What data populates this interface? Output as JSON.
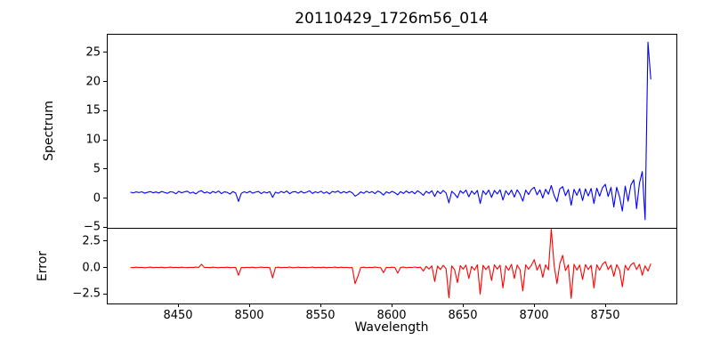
{
  "chart_data": {
    "type": "line",
    "title": "20110429_1726m56_014",
    "xlabel": "Wavelength",
    "x_start": 8416,
    "x_step": 2,
    "xlim": [
      8400,
      8800
    ],
    "xticks": {
      "values": [
        8450,
        8500,
        8550,
        8600,
        8650,
        8700,
        8750
      ],
      "labels": [
        "8450",
        "8500",
        "8550",
        "8600",
        "8650",
        "8700",
        "8750"
      ]
    },
    "grid": false,
    "legend": "none",
    "subplots": [
      {
        "name": "spectrum",
        "ylabel": "Spectrum",
        "color": "#0000ff",
        "ylim": [
          -5.1,
          28.2
        ],
        "ytick_values": [
          -5,
          0,
          5,
          10,
          15,
          20,
          25
        ],
        "ytick_labels": [
          "−5",
          "0",
          "5",
          "10",
          "15",
          "20",
          "25"
        ],
        "y": [
          1.05,
          0.92,
          1.1,
          0.98,
          1.12,
          0.88,
          1.02,
          1.15,
          0.95,
          1.08,
          0.9,
          1.18,
          1.0,
          0.85,
          1.12,
          1.05,
          0.78,
          1.2,
          0.95,
          1.1,
          1.22,
          0.88,
          1.05,
          0.75,
          1.15,
          1.3,
          0.92,
          1.08,
          0.82,
          1.18,
          0.95,
          1.25,
          0.8,
          1.1,
          1.02,
          0.72,
          1.15,
          0.9,
          -0.55,
          0.85,
          1.12,
          0.95,
          1.2,
          0.88,
          1.05,
          1.18,
          0.8,
          1.1,
          0.92,
          1.15,
          0.15,
          1.05,
          0.85,
          1.18,
          0.95,
          1.25,
          0.78,
          1.08,
          1.15,
          0.88,
          1.2,
          0.9,
          1.05,
          1.28,
          0.82,
          1.12,
          0.95,
          1.22,
          0.85,
          1.1,
          0.75,
          1.18,
          1.02,
          1.25,
          0.88,
          1.15,
          0.92,
          1.2,
          0.95,
          0.35,
          0.65,
          1.1,
          0.85,
          1.22,
          0.95,
          1.15,
          0.8,
          1.25,
          1.0,
          0.55,
          1.12,
          0.88,
          1.2,
          0.95,
          0.6,
          1.15,
          0.82,
          1.25,
          0.9,
          1.18,
          0.78,
          1.28,
          0.95,
          0.5,
          1.2,
          0.85,
          1.3,
          0.3,
          1.25,
          0.8,
          1.35,
          0.9,
          -0.8,
          1.2,
          0.75,
          0.1,
          1.3,
          0.85,
          1.4,
          0.25,
          1.25,
          0.7,
          1.35,
          -0.9,
          1.3,
          0.65,
          1.4,
          0.15,
          1.35,
          0.75,
          1.45,
          -0.3,
          1.3,
          0.6,
          1.4,
          0.2,
          1.45,
          0.7,
          -0.5,
          1.4,
          0.65,
          1.5,
          1.9,
          0.6,
          1.45,
          0.05,
          1.55,
          0.7,
          2.2,
          0.5,
          -0.6,
          1.6,
          2.0,
          0.45,
          1.5,
          -1.2,
          1.55,
          0.5,
          1.65,
          -0.4,
          1.6,
          0.4,
          1.7,
          -0.9,
          1.75,
          0.35,
          1.8,
          2.4,
          0.3,
          1.85,
          -1.5,
          1.9,
          0.25,
          -2.2,
          2.1,
          -0.5,
          2.3,
          3.2,
          -1.8,
          2.6,
          4.6,
          -3.7,
          26.9,
          20.5
        ]
      },
      {
        "name": "error",
        "ylabel": "Error",
        "color": "#ff0000",
        "ylim": [
          -3.4,
          3.75
        ],
        "ytick_values": [
          -2.5,
          0.0,
          2.5
        ],
        "ytick_labels": [
          "−2.5",
          "0.0",
          "2.5"
        ],
        "y": [
          0.05,
          0.03,
          0.07,
          0.04,
          0.06,
          0.02,
          0.05,
          0.08,
          0.03,
          0.06,
          0.04,
          0.07,
          0.02,
          0.05,
          0.08,
          0.04,
          0.06,
          0.03,
          0.07,
          0.05,
          0.03,
          0.06,
          0.04,
          0.08,
          0.05,
          0.35,
          0.04,
          0.06,
          0.03,
          0.07,
          0.05,
          0.02,
          0.06,
          0.04,
          0.07,
          0.03,
          0.05,
          0.06,
          -0.7,
          0.05,
          0.03,
          0.06,
          0.04,
          0.07,
          0.02,
          0.05,
          0.08,
          0.04,
          0.06,
          0.03,
          -0.95,
          0.05,
          0.07,
          0.03,
          0.06,
          0.04,
          0.08,
          0.02,
          0.05,
          0.07,
          0.04,
          0.06,
          0.03,
          0.05,
          0.08,
          0.03,
          0.06,
          0.04,
          0.07,
          0.02,
          0.06,
          0.05,
          0.08,
          0.03,
          0.07,
          0.04,
          0.06,
          0.02,
          0.05,
          -1.5,
          -0.8,
          0.05,
          0.07,
          0.03,
          0.06,
          0.04,
          0.08,
          0.05,
          0.02,
          -0.45,
          0.06,
          0.03,
          0.07,
          0.05,
          -0.5,
          0.04,
          0.08,
          0.02,
          0.06,
          0.05,
          0.09,
          0.03,
          0.07,
          -0.3,
          0.15,
          -0.1,
          0.2,
          -1.3,
          0.18,
          -0.15,
          0.25,
          -0.08,
          -2.85,
          0.2,
          -0.18,
          -1.4,
          0.22,
          -0.12,
          0.28,
          -1.0,
          0.15,
          -0.2,
          0.3,
          -2.5,
          0.25,
          -0.15,
          0.2,
          -1.2,
          0.3,
          -0.1,
          0.25,
          -1.9,
          0.2,
          -0.22,
          0.35,
          -1.0,
          0.28,
          -0.15,
          -2.2,
          0.3,
          -0.12,
          0.25,
          0.8,
          -0.2,
          0.35,
          -0.9,
          0.3,
          -0.18,
          3.7,
          0.25,
          -1.5,
          0.4,
          1.2,
          -0.25,
          0.3,
          -2.9,
          0.35,
          -0.2,
          0.28,
          -1.1,
          0.32,
          -0.15,
          0.25,
          -1.9,
          0.3,
          -0.2,
          0.35,
          0.6,
          -0.15,
          0.28,
          -0.8,
          0.32,
          -0.18,
          -1.8,
          0.25,
          -0.22,
          0.3,
          0.5,
          -0.15,
          0.35,
          -0.7,
          0.2,
          -0.3,
          0.4
        ]
      }
    ]
  }
}
